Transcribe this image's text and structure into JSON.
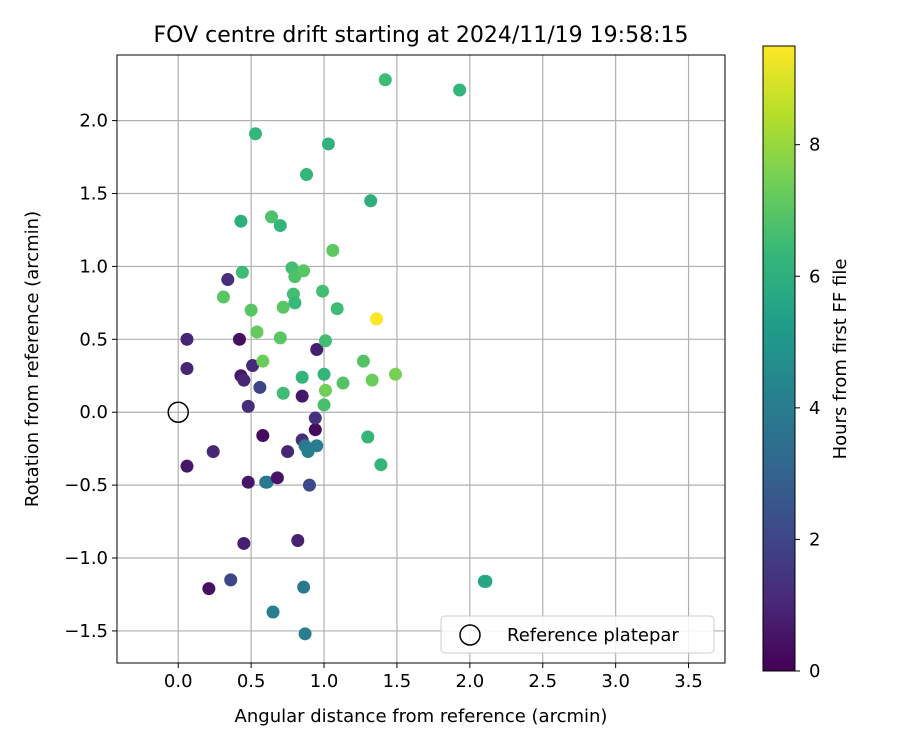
{
  "chart_data": {
    "type": "scatter",
    "title": "FOV centre drift starting at 2024/11/19 19:58:15",
    "xlabel": "Angular distance from reference (arcmin)",
    "ylabel": "Rotation from reference (arcmin)",
    "xlim": [
      -0.42,
      3.75
    ],
    "ylim": [
      -1.72,
      2.45
    ],
    "xticks": [
      0.0,
      0.5,
      1.0,
      1.5,
      2.0,
      2.5,
      3.0,
      3.5
    ],
    "xtick_labels": [
      "0.0",
      "0.5",
      "1.0",
      "1.5",
      "2.0",
      "2.5",
      "3.0",
      "3.5"
    ],
    "yticks": [
      -1.5,
      -1.0,
      -0.5,
      0.0,
      0.5,
      1.0,
      1.5,
      2.0
    ],
    "ytick_labels": [
      "−1.5",
      "−1.0",
      "−0.5",
      "0.0",
      "0.5",
      "1.0",
      "1.5",
      "2.0"
    ],
    "grid": true,
    "legend": {
      "placement": "lower-right",
      "label": "Reference platepar",
      "marker": "open-circle"
    },
    "reference_point": {
      "x": 0.0,
      "y": 0.0
    },
    "colorbar": {
      "label": "Hours from first FF file",
      "colormap": "viridis",
      "range": [
        0,
        9.5
      ],
      "ticks": [
        0,
        2,
        4,
        6,
        8
      ],
      "tick_labels": [
        "0",
        "2",
        "4",
        "6",
        "8"
      ]
    },
    "colormap_stops": [
      "#440154",
      "#482878",
      "#3e4989",
      "#31688e",
      "#26828e",
      "#1f9e89",
      "#35b779",
      "#6ece58",
      "#b5de2b",
      "#fde725"
    ],
    "points": [
      {
        "x": 0.06,
        "y": 0.5,
        "h": 1.0
      },
      {
        "x": 0.06,
        "y": 0.3,
        "h": 1.0
      },
      {
        "x": 0.06,
        "y": -0.37,
        "h": 0.6
      },
      {
        "x": 0.21,
        "y": -1.21,
        "h": 0.4
      },
      {
        "x": 0.24,
        "y": -0.27,
        "h": 1.0
      },
      {
        "x": 0.34,
        "y": 0.91,
        "h": 1.2
      },
      {
        "x": 0.36,
        "y": -1.15,
        "h": 2.0
      },
      {
        "x": 0.42,
        "y": 0.5,
        "h": 0.4
      },
      {
        "x": 0.43,
        "y": 0.25,
        "h": 0.6
      },
      {
        "x": 0.45,
        "y": 0.22,
        "h": 1.0
      },
      {
        "x": 0.45,
        "y": -0.9,
        "h": 0.8
      },
      {
        "x": 0.48,
        "y": 0.04,
        "h": 1.2
      },
      {
        "x": 0.48,
        "y": -0.48,
        "h": 0.6
      },
      {
        "x": 0.51,
        "y": 0.32,
        "h": 1.1
      },
      {
        "x": 0.56,
        "y": 0.17,
        "h": 2.0
      },
      {
        "x": 0.58,
        "y": -0.16,
        "h": 0.3
      },
      {
        "x": 0.6,
        "y": -0.48,
        "h": 3.7
      },
      {
        "x": 0.61,
        "y": -0.48,
        "h": 3.9
      },
      {
        "x": 0.65,
        "y": -1.37,
        "h": 4.0
      },
      {
        "x": 0.68,
        "y": -0.45,
        "h": 0.5
      },
      {
        "x": 0.75,
        "y": -0.27,
        "h": 1.0
      },
      {
        "x": 0.82,
        "y": -0.88,
        "h": 0.9
      },
      {
        "x": 0.85,
        "y": 0.11,
        "h": 0.6
      },
      {
        "x": 0.85,
        "y": -0.19,
        "h": 1.2
      },
      {
        "x": 0.86,
        "y": -1.2,
        "h": 3.9
      },
      {
        "x": 0.87,
        "y": -0.23,
        "h": 3.8
      },
      {
        "x": 0.87,
        "y": -1.52,
        "h": 4.0
      },
      {
        "x": 0.89,
        "y": -0.27,
        "h": 4.1
      },
      {
        "x": 0.9,
        "y": -0.5,
        "h": 2.1
      },
      {
        "x": 0.94,
        "y": -0.12,
        "h": 0.3
      },
      {
        "x": 0.94,
        "y": -0.04,
        "h": 1.4
      },
      {
        "x": 0.95,
        "y": 0.43,
        "h": 0.8
      },
      {
        "x": 0.95,
        "y": -0.23,
        "h": 4.0
      },
      {
        "x": 0.43,
        "y": 1.31,
        "h": 6.0
      },
      {
        "x": 0.44,
        "y": 0.96,
        "h": 6.5
      },
      {
        "x": 0.31,
        "y": 0.79,
        "h": 7.0
      },
      {
        "x": 0.5,
        "y": 0.7,
        "h": 7.0
      },
      {
        "x": 0.53,
        "y": 1.91,
        "h": 6.3
      },
      {
        "x": 0.54,
        "y": 0.55,
        "h": 7.2
      },
      {
        "x": 0.58,
        "y": 0.35,
        "h": 7.3
      },
      {
        "x": 0.64,
        "y": 1.34,
        "h": 6.8
      },
      {
        "x": 0.7,
        "y": 1.28,
        "h": 6.2
      },
      {
        "x": 0.7,
        "y": 0.51,
        "h": 7.0
      },
      {
        "x": 0.72,
        "y": 0.72,
        "h": 7.0
      },
      {
        "x": 0.72,
        "y": 0.13,
        "h": 6.5
      },
      {
        "x": 0.78,
        "y": 0.99,
        "h": 6.6
      },
      {
        "x": 0.79,
        "y": 0.81,
        "h": 6.6
      },
      {
        "x": 0.8,
        "y": 0.75,
        "h": 6.4
      },
      {
        "x": 0.8,
        "y": 0.93,
        "h": 6.8
      },
      {
        "x": 0.85,
        "y": 0.24,
        "h": 6.2
      },
      {
        "x": 0.86,
        "y": 0.97,
        "h": 7.0
      },
      {
        "x": 0.88,
        "y": 1.63,
        "h": 6.3
      },
      {
        "x": 0.99,
        "y": 0.83,
        "h": 6.6
      },
      {
        "x": 1.0,
        "y": 0.05,
        "h": 6.7
      },
      {
        "x": 1.0,
        "y": 0.26,
        "h": 6.2
      },
      {
        "x": 1.01,
        "y": 0.49,
        "h": 6.6
      },
      {
        "x": 1.01,
        "y": 0.15,
        "h": 7.4
      },
      {
        "x": 1.03,
        "y": 1.84,
        "h": 6.1
      },
      {
        "x": 1.06,
        "y": 1.11,
        "h": 7.1
      },
      {
        "x": 1.09,
        "y": 0.71,
        "h": 6.5
      },
      {
        "x": 1.13,
        "y": 0.2,
        "h": 6.9
      },
      {
        "x": 1.27,
        "y": 0.35,
        "h": 6.9
      },
      {
        "x": 1.3,
        "y": -0.17,
        "h": 6.2
      },
      {
        "x": 1.32,
        "y": 1.45,
        "h": 6.0
      },
      {
        "x": 1.33,
        "y": 0.22,
        "h": 7.3
      },
      {
        "x": 1.36,
        "y": 0.64,
        "h": 9.5
      },
      {
        "x": 1.39,
        "y": -0.36,
        "h": 6.3
      },
      {
        "x": 1.42,
        "y": 2.28,
        "h": 6.5
      },
      {
        "x": 1.49,
        "y": 0.26,
        "h": 7.5
      },
      {
        "x": 1.93,
        "y": 2.21,
        "h": 6.3
      },
      {
        "x": 2.1,
        "y": -1.16,
        "h": 5.4
      },
      {
        "x": 2.11,
        "y": -1.16,
        "h": 5.6
      }
    ]
  }
}
